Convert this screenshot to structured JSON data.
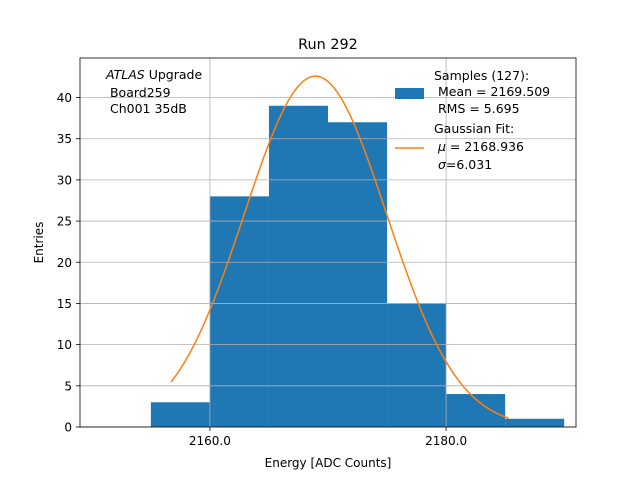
{
  "chart_data": {
    "type": "bar",
    "title": "Run 292",
    "xlabel": "Energy [ADC Counts]",
    "ylabel": "Entries",
    "xlim": [
      2149.0,
      2191.0
    ],
    "ylim": [
      0,
      44.8
    ],
    "x_ticks": [
      2160.0,
      2180.0
    ],
    "x_tick_labels": [
      "2160.0",
      "2180.0"
    ],
    "y_ticks": [
      0,
      5,
      10,
      15,
      20,
      25,
      30,
      35,
      40
    ],
    "y_tick_labels": [
      "0",
      "5",
      "10",
      "15",
      "20",
      "25",
      "30",
      "35",
      "40"
    ],
    "grid": true,
    "bins": [
      {
        "x0": 2155.0,
        "x1": 2160.0,
        "count": 3
      },
      {
        "x0": 2160.0,
        "x1": 2165.0,
        "count": 28
      },
      {
        "x0": 2165.0,
        "x1": 2170.0,
        "count": 39
      },
      {
        "x0": 2170.0,
        "x1": 2175.0,
        "count": 37
      },
      {
        "x0": 2175.0,
        "x1": 2180.0,
        "count": 15
      },
      {
        "x0": 2180.0,
        "x1": 2185.0,
        "count": 4
      },
      {
        "x0": 2185.0,
        "x1": 2190.0,
        "count": 1
      }
    ],
    "fit": {
      "mu": 2168.936,
      "sigma": 6.031,
      "amplitude": 42.6,
      "x_range": [
        2156.7,
        2185.3
      ]
    },
    "colors": {
      "bars": "#1f77b4",
      "fit": "#ff7f0e",
      "grid": "#b0b0b0"
    },
    "annotation": {
      "italic": "ATLAS",
      "rest": " Upgrade",
      "line2": " Board259",
      "line3": " Ch001 35dB"
    },
    "legend": {
      "placement": "top-right",
      "samples_line1": "Samples (127):",
      "samples_line2": " Mean = 2169.509",
      "samples_line3": " RMS = 5.695",
      "fit_line1": "Gaussian Fit:",
      "fit_mu_prefix": " μ",
      "fit_mu_value": " = 2168.936",
      "fit_sigma_prefix": " σ",
      "fit_sigma_value": "=6.031"
    }
  }
}
